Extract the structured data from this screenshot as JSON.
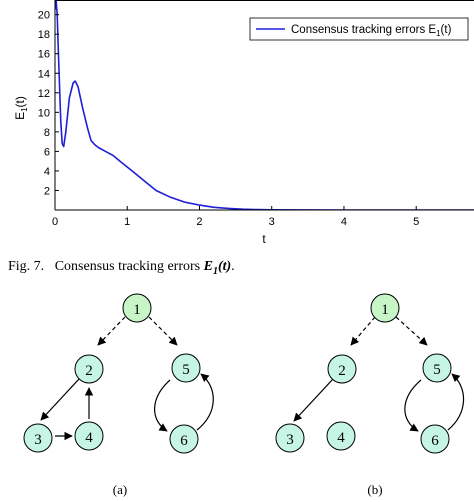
{
  "figure_caption": {
    "label": "Fig. 7.",
    "text": "Consensus tracking errors",
    "symbol": "E",
    "subscript": "1",
    "argument": "(t)",
    "end": "."
  },
  "chart_data": {
    "type": "line",
    "xlabel": "t",
    "ylabel": "E",
    "ylabel_sub": "1",
    "ylabel_suffix": "(t)",
    "xlim": [
      0,
      5.8
    ],
    "ylim": [
      0,
      21.5
    ],
    "xticks": [
      0,
      1,
      2,
      3,
      4,
      5
    ],
    "yticks": [
      2,
      4,
      6,
      8,
      10,
      12,
      14,
      16,
      18,
      20
    ],
    "grid": false,
    "legend_placement": "top-right",
    "series": [
      {
        "name": "Consensus tracking errors E",
        "name_sub": "1",
        "name_suffix": "(t)",
        "color": "#1f1fd8",
        "x": [
          0,
          0.01,
          0.03,
          0.05,
          0.08,
          0.1,
          0.12,
          0.15,
          0.2,
          0.25,
          0.28,
          0.32,
          0.38,
          0.45,
          0.5,
          0.55,
          0.6,
          0.7,
          0.8,
          0.9,
          1.0,
          1.1,
          1.25,
          1.4,
          1.6,
          1.8,
          2.0,
          2.2,
          2.4,
          2.6,
          2.8,
          3.0,
          3.5,
          4.0,
          5.0,
          5.8
        ],
        "y": [
          20.5,
          22.0,
          20.0,
          15.5,
          9.0,
          6.8,
          6.5,
          8.0,
          11.5,
          13.0,
          13.2,
          12.6,
          10.5,
          8.4,
          7.1,
          6.7,
          6.4,
          6.0,
          5.6,
          5.0,
          4.4,
          3.8,
          2.9,
          2.0,
          1.3,
          0.8,
          0.5,
          0.28,
          0.16,
          0.08,
          0.04,
          0.02,
          0.01,
          0,
          0,
          0
        ]
      }
    ]
  },
  "graphs": [
    {
      "label": "(a)",
      "nodes": [
        "1",
        "2",
        "5",
        "3",
        "4",
        "6"
      ],
      "node_color": "#c6f5e6",
      "leader_color": "#c8f5c8"
    },
    {
      "label": "(b)",
      "nodes": [
        "1",
        "2",
        "5",
        "3",
        "4",
        "6"
      ],
      "node_color": "#c6f5e6",
      "leader_color": "#c8f5c8"
    }
  ]
}
